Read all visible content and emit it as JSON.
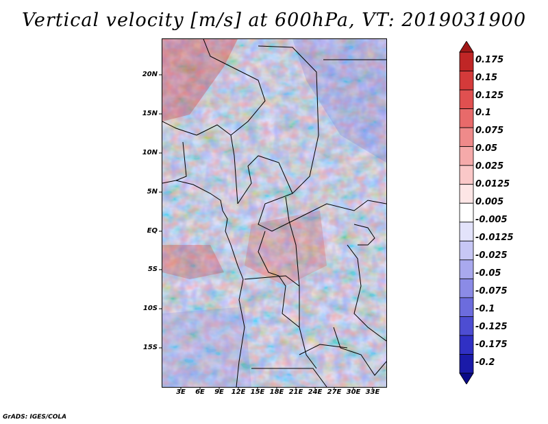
{
  "title": "Vertical velocity [m/s] at 600hPa, VT: 2019031900",
  "credit": "GrADS: IGES/COLA",
  "lat_labels": [
    "20N",
    "15N",
    "10N",
    "5N",
    "EQ",
    "5S",
    "10S",
    "15S"
  ],
  "lon_labels": [
    "3E",
    "6E",
    "9E",
    "12E",
    "15E",
    "18E",
    "21E",
    "24E",
    "27E",
    "30E",
    "33E"
  ],
  "colorbar": {
    "labels": [
      "0.175",
      "0.15",
      "0.125",
      "0.1",
      "0.075",
      "0.05",
      "0.025",
      "0.0125",
      "0.005",
      "-0.005",
      "-0.0125",
      "-0.025",
      "-0.05",
      "-0.075",
      "-0.1",
      "-0.125",
      "-0.175",
      "-0.2"
    ],
    "colors": [
      "#a01818",
      "#c02626",
      "#d43a3a",
      "#e05050",
      "#e86a6a",
      "#ef8a8a",
      "#f5aaaa",
      "#fac8c8",
      "#fde6e6",
      "#ffffff",
      "#e3e3fb",
      "#c7c7f5",
      "#a9a9ee",
      "#8b8be6",
      "#6c6cdd",
      "#4d4dd2",
      "#3030c4",
      "#1a1aa8",
      "#0a0a88"
    ]
  }
}
